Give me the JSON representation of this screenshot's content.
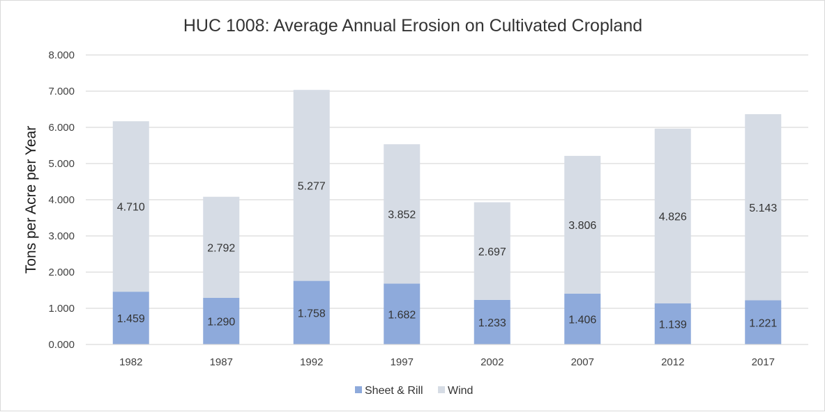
{
  "chart_data": {
    "type": "bar",
    "stacked": true,
    "title": "HUC 1008: Average Annual Erosion on Cultivated Cropland",
    "xlabel": "",
    "ylabel": "Tons per Acre per Year",
    "ylim": [
      0,
      8
    ],
    "yticks": [
      "0.000",
      "1.000",
      "2.000",
      "3.000",
      "4.000",
      "5.000",
      "6.000",
      "7.000",
      "8.000"
    ],
    "grid": true,
    "legend_position": "bottom",
    "categories": [
      "1982",
      "1987",
      "1992",
      "1997",
      "2002",
      "2007",
      "2012",
      "2017"
    ],
    "series": [
      {
        "name": "Sheet & Rill",
        "color": "#8eaadb",
        "values": [
          1.459,
          1.29,
          1.758,
          1.682,
          1.233,
          1.406,
          1.139,
          1.221
        ],
        "labels": [
          "1.459",
          "1.290",
          "1.758",
          "1.682",
          "1.233",
          "1.406",
          "1.139",
          "1.221"
        ]
      },
      {
        "name": "Wind",
        "color": "#d6dce5",
        "values": [
          4.71,
          2.792,
          5.277,
          3.852,
          2.697,
          3.806,
          4.826,
          5.143
        ],
        "labels": [
          "4.710",
          "2.792",
          "5.277",
          "3.852",
          "2.697",
          "3.806",
          "4.826",
          "5.143"
        ]
      }
    ]
  }
}
